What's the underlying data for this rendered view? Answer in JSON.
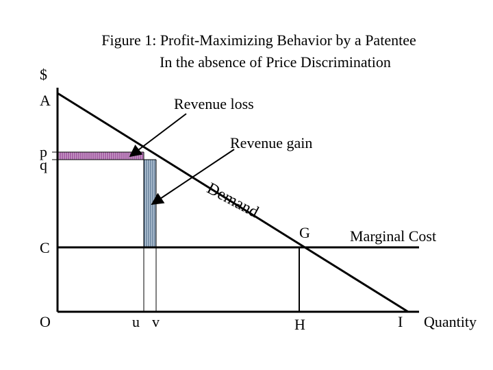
{
  "title": {
    "line1": "Figure 1:  Profit-Maximizing Behavior by a Patentee",
    "line2": "In the absence of Price Discrimination"
  },
  "labels": {
    "dollar": "$",
    "A": "A",
    "p": "p",
    "q": "q",
    "C": "C",
    "O": "O",
    "u": "u",
    "v": "v",
    "G": "G",
    "H": "H",
    "I": "I",
    "quantity": "Quantity",
    "revenue_loss": "Revenue loss",
    "revenue_gain": "Revenue gain",
    "demand": "Demand",
    "marginal_cost": "Marginal Cost"
  },
  "colors": {
    "loss_fill": "#c8a0c8",
    "loss_stripe": "#8a2a8a",
    "gain_fill": "#b8c8d8",
    "gain_stripe": "#3a5a7a",
    "line": "#000000"
  }
}
